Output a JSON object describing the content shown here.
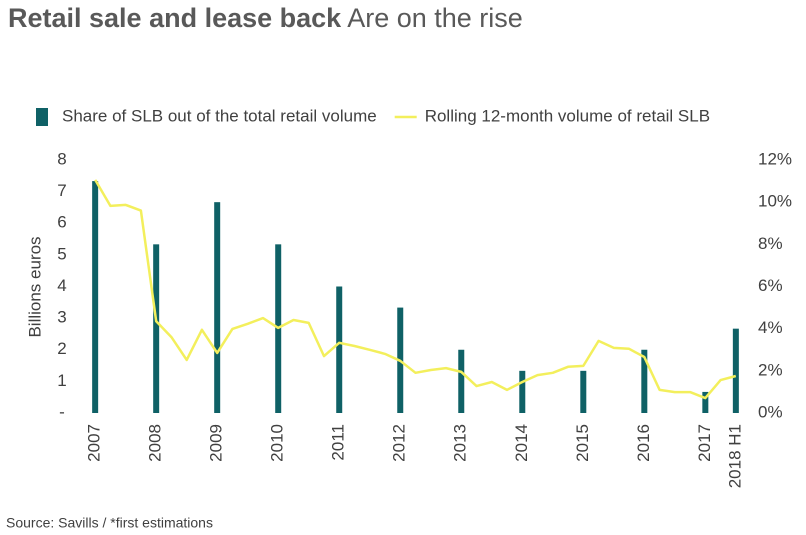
{
  "chart_data": {
    "type": "bar",
    "title": "Retail sale and lease back",
    "subtitle": "Are on the rise",
    "y_label": "Billions euros",
    "source": "Source: Savills / *first estimations",
    "grid": false,
    "legend": "top",
    "xlim": [
      2006.85,
      2017.65
    ],
    "xticks": [
      2007,
      2008,
      2009,
      2010,
      2011,
      2012,
      2013,
      2014,
      2015,
      2016,
      2017,
      {
        "value": 2017.5,
        "label": "2018 H1"
      }
    ],
    "ylim": [
      0,
      8
    ],
    "yticks": [
      {
        "value": 0,
        "label": "-"
      },
      1,
      2,
      3,
      4,
      5,
      6,
      7,
      8
    ],
    "y2lim": [
      0,
      12
    ],
    "y2ticks": [
      {
        "value": 0,
        "label": "0%"
      },
      {
        "value": 2,
        "label": "2%"
      },
      {
        "value": 4,
        "label": "4%"
      },
      {
        "value": 6,
        "label": "6%"
      },
      {
        "value": 8,
        "label": "8%"
      },
      {
        "value": 10,
        "label": "10%"
      },
      {
        "value": 12,
        "label": "12%"
      }
    ],
    "series": [
      {
        "name": "Share of SLB out of the total retail volume",
        "type": "bar",
        "axis": "y2",
        "color": "#0f6166",
        "x": [
          2007,
          2008,
          2009,
          2010,
          2011,
          2012,
          2013,
          2014,
          2015,
          2016,
          2017,
          2017.5
        ],
        "values": [
          11,
          8,
          10,
          8,
          6,
          5,
          3,
          2,
          2,
          3,
          1,
          4
        ]
      },
      {
        "name": "Rolling 12-month volume of retail SLB",
        "type": "line",
        "color": "#f3ef5c",
        "x": [
          2007,
          2007.25,
          2007.5,
          2007.75,
          2008,
          2008.25,
          2008.5,
          2008.75,
          2009,
          2009.25,
          2009.5,
          2009.75,
          2010,
          2010.25,
          2010.5,
          2010.75,
          2011,
          2011.25,
          2011.5,
          2011.75,
          2012,
          2012.25,
          2012.5,
          2012.75,
          2013,
          2013.25,
          2013.5,
          2013.75,
          2014,
          2014.25,
          2014.5,
          2014.75,
          2015,
          2015.25,
          2015.5,
          2015.75,
          2016,
          2016.25,
          2016.5,
          2016.75,
          2017,
          2017.25,
          2017.5
        ],
        "values": [
          7.37,
          6.55,
          6.58,
          6.4,
          2.9,
          2.4,
          1.68,
          2.63,
          1.9,
          2.66,
          2.82,
          3.0,
          2.69,
          2.94,
          2.85,
          1.8,
          2.22,
          2.12,
          2.0,
          1.87,
          1.65,
          1.27,
          1.36,
          1.42,
          1.3,
          0.85,
          0.98,
          0.73,
          0.98,
          1.2,
          1.27,
          1.46,
          1.49,
          2.28,
          2.06,
          2.03,
          1.77,
          0.73,
          0.66,
          0.66,
          0.47,
          1.04,
          1.17
        ]
      }
    ]
  }
}
